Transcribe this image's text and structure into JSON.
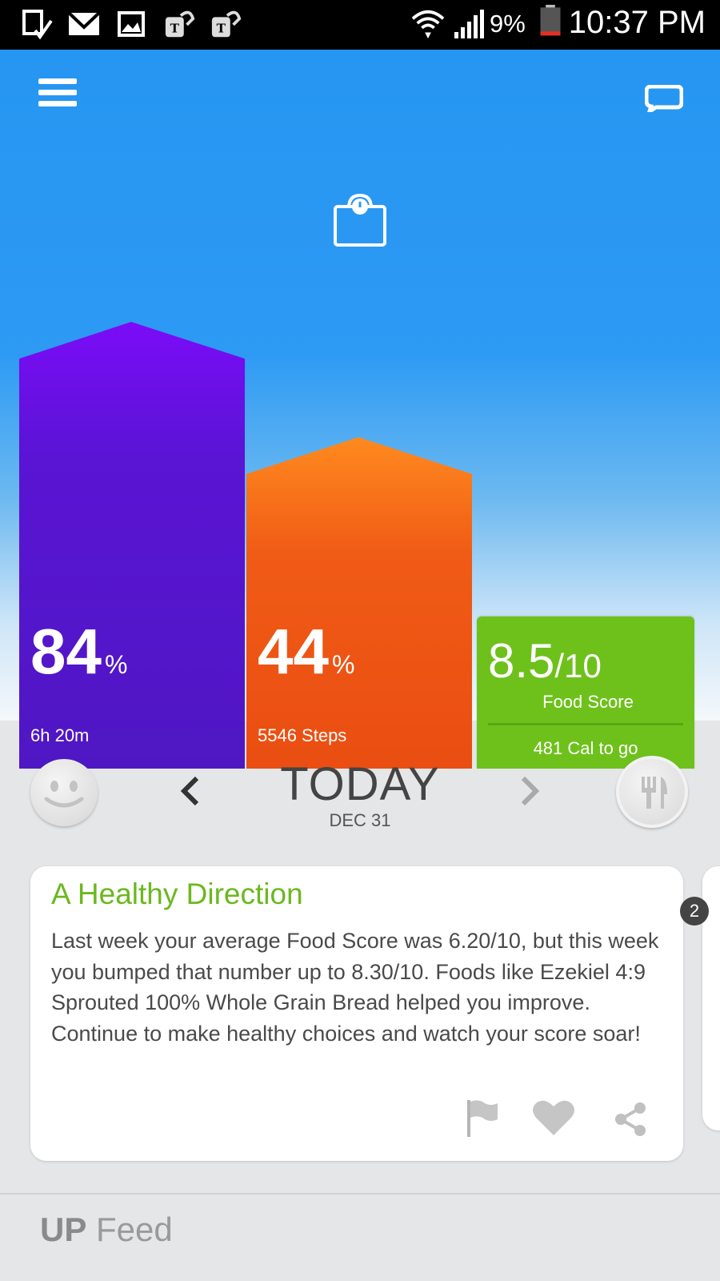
{
  "status_bar": {
    "battery_percent": "9%",
    "time": "10:37 PM",
    "icons": [
      "download-done-icon",
      "gmail-icon",
      "gallery-icon",
      "t-mobile-icon",
      "t-mobile-icon",
      "wifi-icon",
      "signal-icon",
      "battery-icon"
    ]
  },
  "hero": {
    "sleep": {
      "percent": "84",
      "percent_sign": "%",
      "detail": "6h 20m",
      "color": "#5a14cc",
      "progress": 0.84
    },
    "steps": {
      "percent": "44",
      "percent_sign": "%",
      "detail": "5546 Steps",
      "color": "#f25b17",
      "progress": 0.44
    },
    "food": {
      "score": "8.5",
      "denominator": "/10",
      "label": "Food Score",
      "calories": "481 Cal to go",
      "color": "#6ec11b"
    }
  },
  "date_nav": {
    "title": "TODAY",
    "date": "DEC 31"
  },
  "feed_card": {
    "title": "A Healthy Direction",
    "body": "Last week your average Food Score was 6.20/10, but this week you bumped that number up to 8.30/10. Foods like Ezekiel 4:9 Sprouted 100% Whole Grain Bread helped you improve. Continue to make healthy choices and watch your score soar!",
    "badge_count": "2"
  },
  "footer": {
    "brand": "UP",
    "label": "Feed"
  }
}
